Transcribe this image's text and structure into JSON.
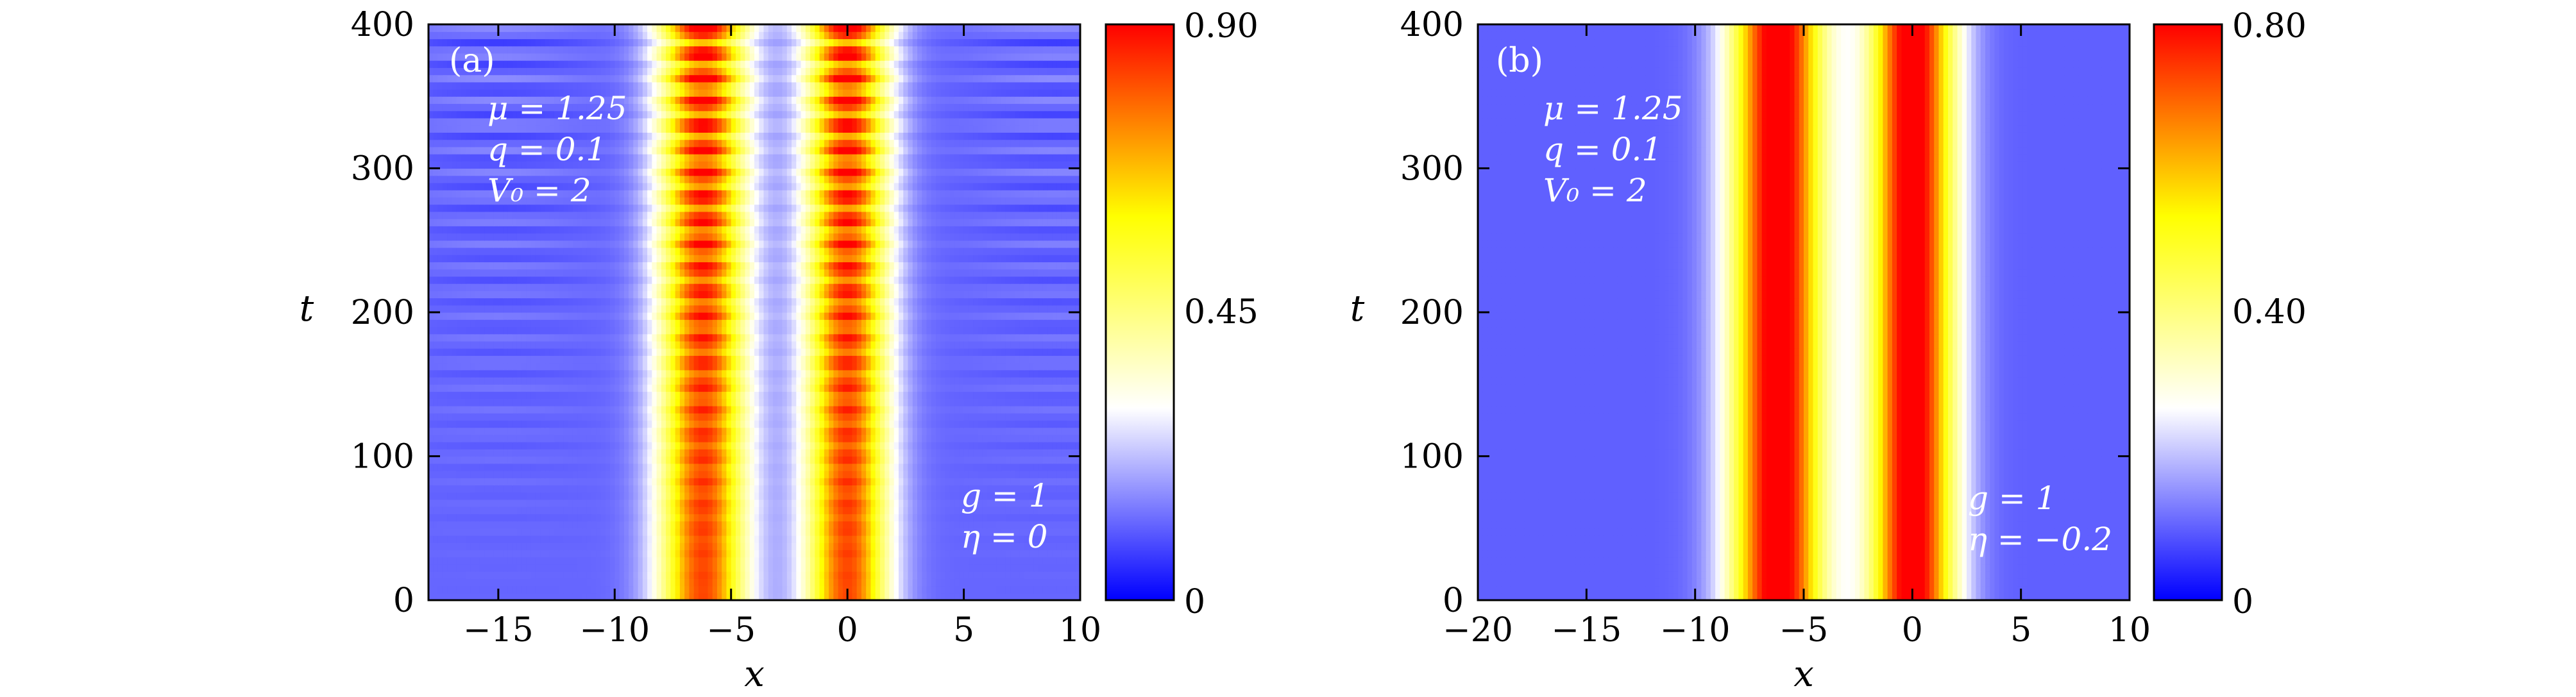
{
  "chart_data": [
    {
      "type": "heatmap",
      "panel_label": "(a)",
      "xlabel": "x",
      "ylabel": "t",
      "xlim": [
        -18,
        10
      ],
      "ylim": [
        0,
        400
      ],
      "xticks": [
        -15,
        -10,
        -5,
        0,
        5,
        10
      ],
      "xtick_labels": [
        "−15",
        "−10",
        "−5",
        "0",
        "5",
        "10"
      ],
      "yticks": [
        0,
        100,
        200,
        300,
        400
      ],
      "ytick_labels": [
        "0",
        "100",
        "200",
        "300",
        "400"
      ],
      "colorbar": {
        "min": 0,
        "mid": 0.45,
        "max": 0.9,
        "labels": [
          "0",
          "0.45",
          "0.90"
        ]
      },
      "params_top": [
        "μ = 1.25",
        "q = 0.1",
        "V₀ = 2"
      ],
      "params_bottom": [
        "g = 1",
        "η = 0"
      ],
      "colormap": [
        "#0000ff",
        "#ffffff",
        "#ffff00",
        "#ff0000"
      ],
      "lobes": [
        {
          "x_center": -6.2,
          "width": 1.9,
          "peak": 0.82,
          "osc_amplitude": 0.22,
          "osc_period": 16.5
        },
        {
          "x_center": 0,
          "width": 1.8,
          "peak": 0.82,
          "osc_amplitude": 0.22,
          "osc_period": 16.5
        }
      ],
      "background": 0.12
    },
    {
      "type": "heatmap",
      "panel_label": "(b)",
      "xlabel": "x",
      "ylabel": "t",
      "xlim": [
        -20,
        10
      ],
      "ylim": [
        0,
        400
      ],
      "xticks": [
        -20,
        -15,
        -10,
        -5,
        0,
        5,
        10
      ],
      "xtick_labels": [
        "−20",
        "−15",
        "−10",
        "−5",
        "0",
        "5",
        "10"
      ],
      "yticks": [
        0,
        100,
        200,
        300,
        400
      ],
      "ytick_labels": [
        "0",
        "100",
        "200",
        "300",
        "400"
      ],
      "colorbar": {
        "min": 0,
        "mid": 0.4,
        "max": 0.8,
        "labels": [
          "0",
          "0.40",
          "0.80"
        ]
      },
      "params_top": [
        "μ = 1.25",
        "q = 0.1",
        "V₀ = 2"
      ],
      "params_bottom": [
        "g = 1",
        "η = −0.2"
      ],
      "colormap": [
        "#0000ff",
        "#ffffff",
        "#ffff00",
        "#ff0000"
      ],
      "lobes": [
        {
          "x_center": -6.2,
          "width": 2.2,
          "peak": 0.85,
          "osc_amplitude": 0.0,
          "osc_period": 16.5
        },
        {
          "x_center": 0,
          "width": 2.0,
          "peak": 0.85,
          "osc_amplitude": 0.0,
          "osc_period": 16.5
        }
      ],
      "background": 0.1
    }
  ]
}
